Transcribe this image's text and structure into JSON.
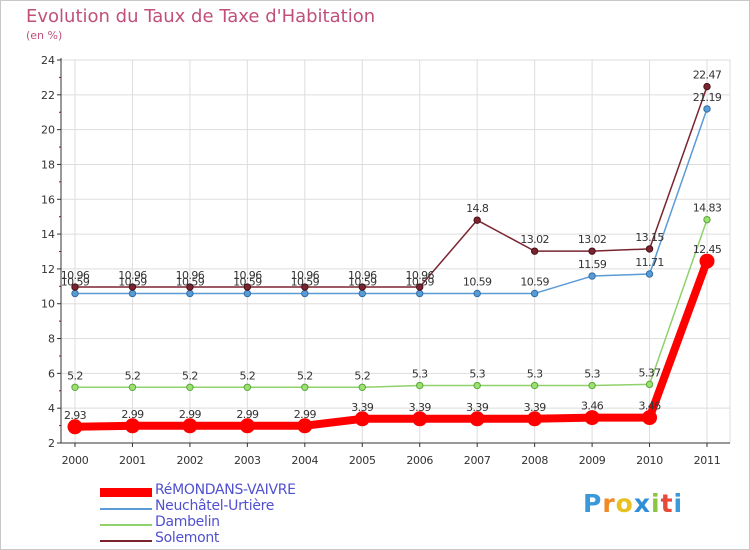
{
  "title": "Evolution du Taux de Taxe d'Habitation",
  "unit_label": "(en %)",
  "logo": {
    "text": "Proxiti",
    "letters": [
      "P",
      "r",
      "o",
      "x",
      "i",
      "t",
      "i"
    ],
    "colors": [
      "#3a9ad9",
      "#f08a24",
      "#e8c020",
      "#2f8fd6",
      "#8cc63f",
      "#e84a3a",
      "#3a9ad9"
    ]
  },
  "chart_data": {
    "type": "line",
    "x": [
      "2000",
      "2001",
      "2002",
      "2003",
      "2004",
      "2005",
      "2006",
      "2007",
      "2008",
      "2009",
      "2010",
      "2011"
    ],
    "ylim": [
      2,
      24
    ],
    "yticks": [
      "2",
      "4",
      "6",
      "8",
      "10",
      "12",
      "14",
      "16",
      "18",
      "20",
      "22",
      "24"
    ],
    "grid": true,
    "legend_position": "bottom-left",
    "series": [
      {
        "name": "RéMONDANS-VAIVRE",
        "color": "#ff0000",
        "values": [
          2.93,
          2.99,
          2.99,
          2.99,
          2.99,
          3.39,
          3.39,
          3.39,
          3.39,
          3.46,
          3.46,
          12.45
        ],
        "labels": [
          "2.93",
          "2.99",
          "2.99",
          "2.99",
          "2.99",
          "3.39",
          "3.39",
          "3.39",
          "3.39",
          "3.46",
          "3.46",
          "12.45"
        ]
      },
      {
        "name": "Neuchâtel-Urtière",
        "color": "#5b9bd5",
        "values": [
          10.59,
          10.59,
          10.59,
          10.59,
          10.59,
          10.59,
          10.59,
          10.59,
          10.59,
          11.59,
          11.71,
          21.19
        ],
        "labels": [
          "10.59",
          "10.59",
          "10.59",
          "10.59",
          "10.59",
          "10.59",
          "10.59",
          "10.59",
          "10.59",
          "11.59",
          "11.71",
          "21.19"
        ]
      },
      {
        "name": "Dambelin",
        "color": "#8fd16a",
        "values": [
          5.2,
          5.2,
          5.2,
          5.2,
          5.2,
          5.2,
          5.3,
          5.3,
          5.3,
          5.3,
          5.37,
          14.83
        ],
        "labels": [
          "5.2",
          "5.2",
          "5.2",
          "5.2",
          "5.2",
          "5.2",
          "5.3",
          "5.3",
          "5.3",
          "5.3",
          "5.37",
          "14.83"
        ]
      },
      {
        "name": "Solemont",
        "color": "#7a2430",
        "values": [
          10.96,
          10.96,
          10.96,
          10.96,
          10.96,
          10.96,
          10.96,
          14.8,
          13.02,
          13.02,
          13.15,
          22.47
        ],
        "labels": [
          "10.96",
          "10.96",
          "10.96",
          "10.96",
          "10.96",
          "10.96",
          "10.96",
          "14.8",
          "13.02",
          "13.02",
          "13.15",
          "22.47"
        ]
      }
    ]
  }
}
